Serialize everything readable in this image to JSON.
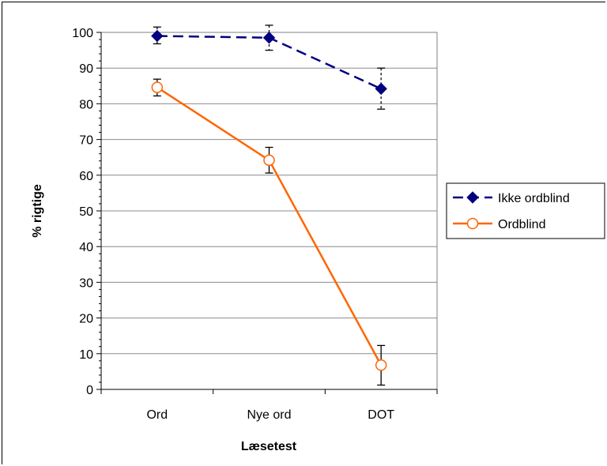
{
  "chart_data": {
    "type": "line",
    "title": "",
    "xlabel": "Læsetest",
    "ylabel": "% rigtige",
    "categories": [
      "Ord",
      "Nye ord",
      "DOT"
    ],
    "ylim": [
      0,
      100
    ],
    "yticks": [
      0,
      10,
      20,
      30,
      40,
      50,
      60,
      70,
      80,
      90,
      100
    ],
    "grid": "horizontal",
    "legend_position": "right",
    "series": [
      {
        "name": "Ikke ordblind",
        "values": [
          99,
          98.5,
          84.2
        ],
        "error_low": [
          96.8,
          95,
          78.5
        ],
        "error_high": [
          101.5,
          102,
          90
        ],
        "color": "#000080",
        "line_style": "dashed",
        "marker": "diamond-filled"
      },
      {
        "name": "Ordblind",
        "values": [
          84.6,
          64.2,
          6.8
        ],
        "error_low": [
          82.2,
          60.6,
          1.2
        ],
        "error_high": [
          86.9,
          67.8,
          12.3
        ],
        "color": "#FF6600",
        "line_style": "solid",
        "marker": "circle-open"
      }
    ]
  }
}
